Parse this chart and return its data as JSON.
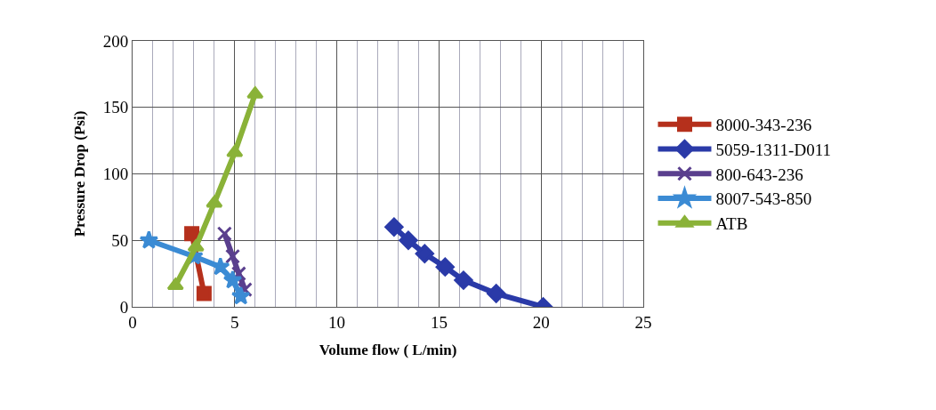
{
  "chart_data": {
    "type": "line",
    "xlabel": "Volume flow ( L/min)",
    "ylabel": "Pressure Drop (Psi)",
    "xlim": [
      0,
      25
    ],
    "xticks": [
      0,
      5,
      10,
      15,
      20,
      25
    ],
    "ylim": [
      0,
      200
    ],
    "yticks": [
      0,
      50,
      100,
      150,
      200
    ],
    "grid": true,
    "legend": "right",
    "series": [
      {
        "name": "8000-343-236",
        "color": "#b5301c",
        "marker": "square",
        "x": [
          2.9,
          3.5
        ],
        "values": [
          55,
          10
        ]
      },
      {
        "name": "5059-1311-D011",
        "color": "#2a3aa8",
        "marker": "diamond",
        "x": [
          12.8,
          13.5,
          14.3,
          15.3,
          16.2,
          17.8,
          20.1
        ],
        "values": [
          60,
          50,
          40,
          30,
          20,
          10,
          0
        ]
      },
      {
        "name": "800-643-236",
        "color": "#5a3f8e",
        "marker": "cross",
        "x": [
          4.5,
          4.9,
          5.2,
          5.5
        ],
        "values": [
          55,
          38,
          25,
          13
        ]
      },
      {
        "name": "8007-543-850",
        "color": "#3b8bd4",
        "marker": "star",
        "x": [
          0.8,
          3.0,
          4.3,
          4.9,
          5.3
        ],
        "values": [
          50,
          38,
          30,
          20,
          8
        ]
      },
      {
        "name": "ATB",
        "color": "#8ab238",
        "marker": "triangle",
        "x": [
          2.1,
          3.1,
          4.0,
          5.0,
          6.0
        ],
        "values": [
          16,
          45,
          78,
          116,
          160
        ]
      }
    ]
  }
}
